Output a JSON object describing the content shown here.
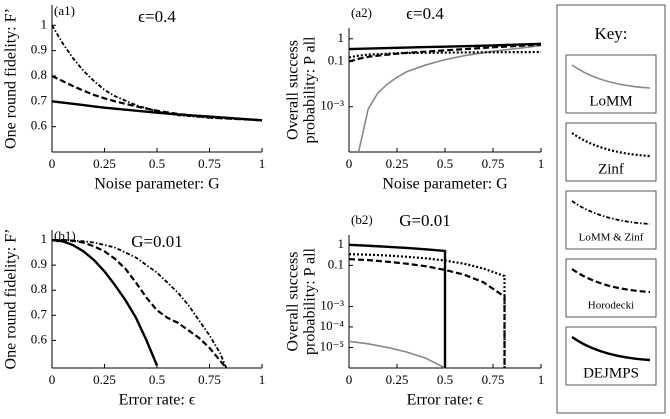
{
  "chart_data": [
    {
      "type": "line",
      "panel": "(a1)",
      "title": "ϵ=0.4",
      "xlabel": "Noise parameter: G",
      "ylabel": [
        "One round fidelity: F’"
      ],
      "xlim": [
        0,
        1
      ],
      "ylim": [
        0.5,
        1.08
      ],
      "xticks": [
        0,
        0.25,
        0.5,
        0.75,
        1
      ],
      "yticks": [
        0.6,
        0.7,
        0.8,
        0.9,
        1
      ],
      "log_y": false,
      "series": [
        {
          "name": "LoMM & Zinf",
          "x": [
            0,
            0.05,
            0.1,
            0.15,
            0.2,
            0.25,
            0.3,
            0.4,
            0.5,
            0.6,
            0.75,
            1
          ],
          "values": [
            1.0,
            0.93,
            0.87,
            0.82,
            0.78,
            0.745,
            0.72,
            0.685,
            0.66,
            0.645,
            0.635,
            0.625
          ]
        },
        {
          "name": "Horodecki",
          "x": [
            0,
            0.05,
            0.1,
            0.15,
            0.2,
            0.25,
            0.3,
            0.4,
            0.5,
            0.6,
            0.75,
            1
          ],
          "values": [
            0.8,
            0.78,
            0.76,
            0.742,
            0.725,
            0.712,
            0.7,
            0.68,
            0.663,
            0.65,
            0.636,
            0.625
          ]
        },
        {
          "name": "DEJMPS",
          "x": [
            0,
            0.05,
            0.1,
            0.15,
            0.2,
            0.25,
            0.3,
            0.4,
            0.5,
            0.6,
            0.75,
            1
          ],
          "values": [
            0.7,
            0.695,
            0.69,
            0.685,
            0.68,
            0.675,
            0.671,
            0.663,
            0.655,
            0.648,
            0.64,
            0.625
          ]
        }
      ]
    },
    {
      "type": "line",
      "panel": "(a2)",
      "title": "ϵ=0.4",
      "xlabel": "Noise parameter: G",
      "ylabel": [
        "Overall success",
        "probability: P all"
      ],
      "xlim": [
        0,
        1
      ],
      "ylim": [
        1e-05,
        3
      ],
      "xticks": [
        0,
        0.25,
        0.5,
        0.75,
        1
      ],
      "yticks": [
        {
          "value": 0.001,
          "label": "10⁻³"
        },
        0.1,
        1
      ],
      "log_y": true,
      "series": [
        {
          "name": "LoMM",
          "x": [
            0,
            0.05,
            0.1,
            0.15,
            0.2,
            0.25,
            0.3,
            0.4,
            0.5,
            0.6,
            0.75,
            1
          ],
          "values": [
            null,
            1e-05,
            0.0008,
            0.004,
            0.01,
            0.02,
            0.035,
            0.07,
            0.12,
            0.18,
            0.28,
            0.5
          ]
        },
        {
          "name": "Zinf",
          "x": [
            0,
            0.05,
            0.1,
            0.15,
            0.2,
            0.25,
            0.3,
            0.4,
            0.5,
            0.6,
            0.75,
            1
          ],
          "values": [
            0.15,
            0.18,
            0.2,
            0.21,
            0.22,
            0.23,
            0.235,
            0.24,
            0.245,
            0.25,
            0.255,
            0.26
          ]
        },
        {
          "name": "Horodecki",
          "x": [
            0,
            0.05,
            0.1,
            0.15,
            0.2,
            0.25,
            0.3,
            0.4,
            0.5,
            0.6,
            0.75,
            1
          ],
          "values": [
            0.1,
            0.13,
            0.16,
            0.18,
            0.2,
            0.22,
            0.24,
            0.27,
            0.31,
            0.35,
            0.42,
            0.55
          ]
        },
        {
          "name": "DEJMPS",
          "x": [
            0,
            0.05,
            0.1,
            0.15,
            0.2,
            0.25,
            0.3,
            0.4,
            0.5,
            0.6,
            0.75,
            1
          ],
          "values": [
            0.35,
            0.36,
            0.37,
            0.38,
            0.39,
            0.4,
            0.41,
            0.43,
            0.45,
            0.47,
            0.51,
            0.6
          ]
        }
      ]
    },
    {
      "type": "line",
      "panel": "(b1)",
      "title": "G=0.01",
      "xlabel": "Error rate: ϵ",
      "ylabel": [
        "One round fidelity: F’"
      ],
      "xlim": [
        0,
        1
      ],
      "ylim": [
        0.49,
        1.04
      ],
      "xticks": [
        0,
        0.25,
        0.5,
        0.75,
        1
      ],
      "yticks": [
        0.6,
        0.7,
        0.8,
        0.9,
        1
      ],
      "log_y": false,
      "series": [
        {
          "name": "LoMM & Zinf",
          "x": [
            0,
            0.05,
            0.1,
            0.15,
            0.2,
            0.25,
            0.3,
            0.35,
            0.4,
            0.45,
            0.5,
            0.55,
            0.6,
            0.65,
            0.7,
            0.75,
            0.8,
            0.83
          ],
          "values": [
            1,
            1,
            0.998,
            0.995,
            0.99,
            0.98,
            0.97,
            0.95,
            0.93,
            0.9,
            0.87,
            0.83,
            0.79,
            0.74,
            0.68,
            0.62,
            0.55,
            0.49
          ]
        },
        {
          "name": "Horodecki",
          "x": [
            0,
            0.05,
            0.1,
            0.15,
            0.2,
            0.25,
            0.3,
            0.35,
            0.4,
            0.45,
            0.5,
            0.55,
            0.6,
            0.65,
            0.7,
            0.75,
            0.8,
            0.83
          ],
          "values": [
            1,
            1,
            0.997,
            0.99,
            0.975,
            0.955,
            0.925,
            0.885,
            0.83,
            0.77,
            0.72,
            0.69,
            0.67,
            0.64,
            0.61,
            0.57,
            0.52,
            0.49
          ]
        },
        {
          "name": "DEJMPS",
          "x": [
            0,
            0.05,
            0.1,
            0.15,
            0.2,
            0.25,
            0.3,
            0.35,
            0.4,
            0.45,
            0.5
          ],
          "values": [
            1,
            0.995,
            0.98,
            0.955,
            0.92,
            0.875,
            0.82,
            0.76,
            0.69,
            0.6,
            0.5
          ]
        }
      ]
    },
    {
      "type": "line",
      "panel": "(b2)",
      "title": "G=0.01",
      "xlabel": "Error rate: ϵ",
      "ylabel": [
        "Overall success",
        "probability: P all"
      ],
      "xlim": [
        0,
        1
      ],
      "ylim": [
        1e-06,
        3
      ],
      "xticks": [
        0,
        0.25,
        0.5,
        0.75,
        1
      ],
      "yticks": [
        {
          "value": 1e-05,
          "label": "10⁻⁵"
        },
        {
          "value": 0.0001,
          "label": "10⁻⁴"
        },
        {
          "value": 0.001,
          "label": "10⁻³"
        },
        0.1,
        1
      ],
      "log_y": true,
      "series": [
        {
          "name": "LoMM",
          "x": [
            0,
            0.1,
            0.2,
            0.3,
            0.4,
            0.5
          ],
          "values": [
            2e-05,
            1.5e-05,
            1e-05,
            6e-06,
            3e-06,
            1e-06
          ]
        },
        {
          "name": "Zinf",
          "x": [
            0,
            0.1,
            0.2,
            0.3,
            0.4,
            0.5,
            0.6,
            0.7,
            0.81,
            0.81
          ],
          "values": [
            0.35,
            0.33,
            0.3,
            0.26,
            0.22,
            0.17,
            0.12,
            0.07,
            0.03,
            1e-06
          ]
        },
        {
          "name": "Horodecki",
          "x": [
            0,
            0.1,
            0.2,
            0.3,
            0.4,
            0.5,
            0.6,
            0.7,
            0.81,
            0.81
          ],
          "values": [
            0.2,
            0.18,
            0.15,
            0.12,
            0.09,
            0.06,
            0.035,
            0.015,
            0.003,
            1e-06
          ]
        },
        {
          "name": "DEJMPS",
          "x": [
            0,
            0.1,
            0.2,
            0.3,
            0.4,
            0.5,
            0.5
          ],
          "values": [
            1,
            0.9,
            0.8,
            0.7,
            0.6,
            0.5,
            1e-06
          ]
        }
      ]
    }
  ],
  "key": {
    "title": "Key:",
    "entries": [
      {
        "label": "LoMM",
        "color": "#888888",
        "dash": "none",
        "width": 1.6
      },
      {
        "label": "Zinf",
        "color": "#000000",
        "dash": "2 2",
        "width": 2.2
      },
      {
        "label": "LoMM & Zinf",
        "color": "#000000",
        "dash": "4 2 1.5 2",
        "width": 1.8
      },
      {
        "label": "Horodecki",
        "color": "#000000",
        "dash": "6 3",
        "width": 2.2
      },
      {
        "label": "DEJMPS",
        "color": "#000000",
        "dash": "none",
        "width": 2.4
      }
    ]
  }
}
